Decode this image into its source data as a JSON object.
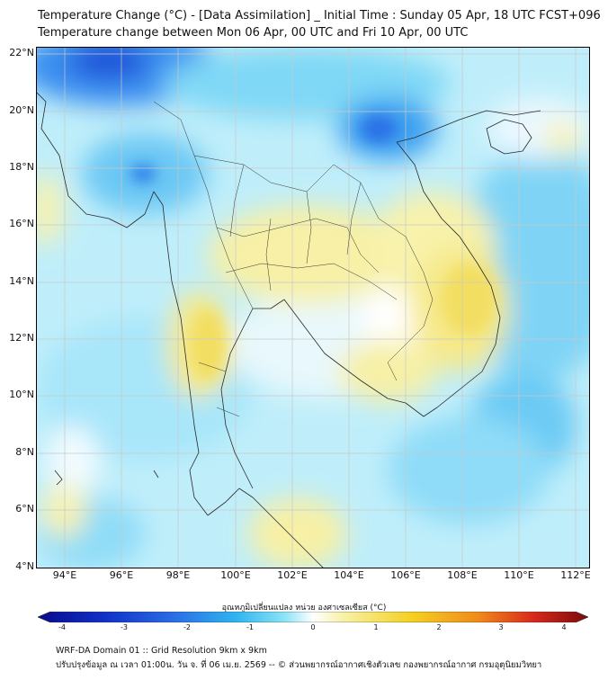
{
  "title_line1": "Temperature Change (°C) - [Data Assimilation] _ Initial Time : Sunday 05 Apr, 18 UTC FCST+096",
  "title_line2": "Temperature change between Mon 06 Apr, 00 UTC and Fri 10 Apr, 00 UTC",
  "lat_labels": [
    "22°N",
    "20°N",
    "18°N",
    "16°N",
    "14°N",
    "12°N",
    "10°N",
    "8°N",
    "6°N",
    "4°N"
  ],
  "lon_labels": [
    "94°E",
    "96°E",
    "98°E",
    "100°E",
    "102°E",
    "104°E",
    "106°E",
    "108°E",
    "110°E",
    "112°E"
  ],
  "colorbar": {
    "title": "อุณหภูมิเปลี่ยนแปลง หน่วย องศาเซลเซียส (°C)",
    "ticks": [
      "-4",
      "-3",
      "-2",
      "-1",
      "0",
      "1",
      "2",
      "3",
      "4"
    ],
    "range": [
      -4,
      4
    ],
    "colors": [
      "#0a0a8c",
      "#1030c8",
      "#2a6fe6",
      "#2fb4f0",
      "#8fe4f8",
      "#ffffff",
      "#f6f0a0",
      "#f5d020",
      "#f08a1a",
      "#d82a1a",
      "#7a0a0a"
    ]
  },
  "footer_line1": "WRF-DA Domain 01 :: Grid Resolution 9km x 9km",
  "footer_line2": "ปรับปรุงข้อมูล ณ เวลา 01:00น. วัน จ. ที่ 06 เม.ย. 2569 -- © ส่วนพยากรณ์อากาศเชิงตัวเลข กองพยากรณ์อากาศ กรมอุตุนิยมวิทยา"
}
